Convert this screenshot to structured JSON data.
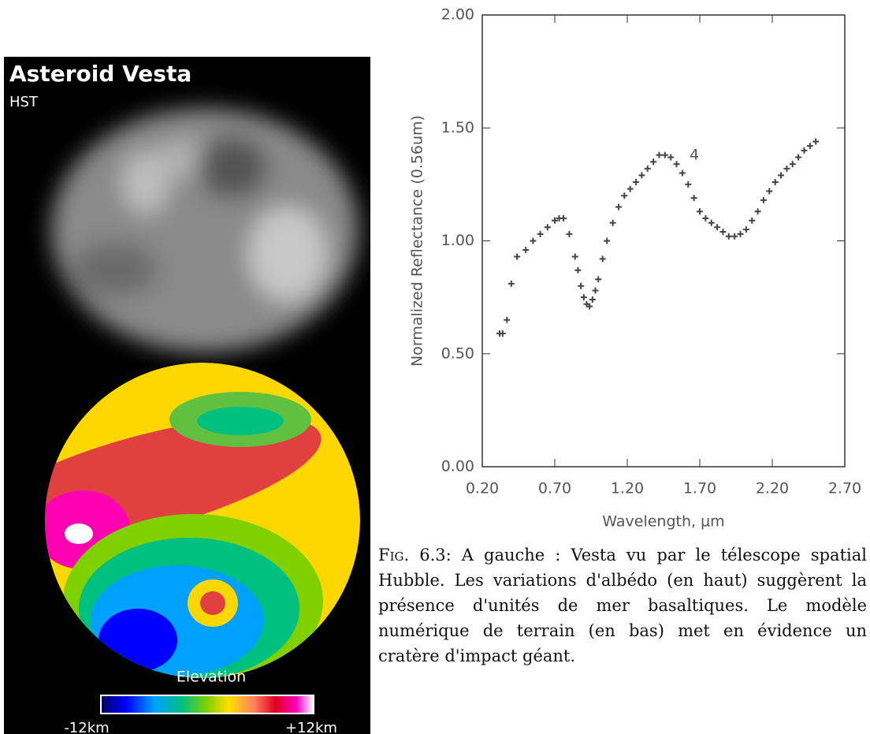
{
  "image": {
    "title": "Asteroid Vesta",
    "subtitle": "HST",
    "legend_title": "Elevation",
    "legend_min": "-12km",
    "legend_max": "+12km"
  },
  "chart_data": {
    "type": "scatter",
    "xlabel": "Wavelength, µm",
    "ylabel": "Normalized Reflectance (0.56um)",
    "annotations": [
      "4"
    ],
    "xlim": [
      0.2,
      2.7
    ],
    "ylim": [
      0,
      2
    ],
    "xticks": [
      {
        "value": 0.2,
        "label": "0.20"
      },
      {
        "value": 0.7,
        "label": "0.70"
      },
      {
        "value": 1.2,
        "label": "1.20"
      },
      {
        "value": 1.7,
        "label": "1.70"
      },
      {
        "value": 2.2,
        "label": "2.20"
      },
      {
        "value": 2.7,
        "label": "2.70"
      }
    ],
    "yticks": [
      {
        "value": 0,
        "label": "0.00"
      },
      {
        "value": 0.5,
        "label": "0.50"
      },
      {
        "value": 1,
        "label": "1.00"
      },
      {
        "value": 1.5,
        "label": "1.50"
      },
      {
        "value": 2,
        "label": "2.00"
      }
    ],
    "color": "#444444",
    "x": [
      0.32,
      0.34,
      0.37,
      0.4,
      0.44,
      0.5,
      0.55,
      0.6,
      0.65,
      0.7,
      0.73,
      0.76,
      0.8,
      0.84,
      0.86,
      0.88,
      0.9,
      0.92,
      0.94,
      0.96,
      0.98,
      1.0,
      1.03,
      1.06,
      1.1,
      1.14,
      1.18,
      1.22,
      1.26,
      1.3,
      1.34,
      1.38,
      1.42,
      1.46,
      1.5,
      1.54,
      1.58,
      1.62,
      1.66,
      1.7,
      1.74,
      1.78,
      1.82,
      1.86,
      1.9,
      1.94,
      1.98,
      2.02,
      2.06,
      2.1,
      2.14,
      2.18,
      2.22,
      2.26,
      2.3,
      2.34,
      2.38,
      2.42,
      2.46,
      2.5
    ],
    "values": [
      0.59,
      0.59,
      0.65,
      0.81,
      0.93,
      0.96,
      1.0,
      1.03,
      1.06,
      1.09,
      1.1,
      1.1,
      1.03,
      0.93,
      0.87,
      0.8,
      0.75,
      0.72,
      0.71,
      0.74,
      0.78,
      0.83,
      0.92,
      1.0,
      1.08,
      1.15,
      1.2,
      1.23,
      1.26,
      1.29,
      1.32,
      1.35,
      1.38,
      1.38,
      1.37,
      1.34,
      1.3,
      1.25,
      1.19,
      1.13,
      1.1,
      1.08,
      1.06,
      1.04,
      1.02,
      1.02,
      1.03,
      1.05,
      1.09,
      1.13,
      1.18,
      1.22,
      1.26,
      1.29,
      1.32,
      1.34,
      1.37,
      1.4,
      1.42,
      1.44
    ]
  },
  "caption": {
    "label": "Fig. 6.3:",
    "text": "A gauche : Vesta vu par le télescope spatial Hubble. Les variations d'albédo (en haut) suggèrent la présence d'unités de mer basaltiques. Le modèle numérique de terrain (en bas) met en évidence un cratère d'impact géant."
  }
}
